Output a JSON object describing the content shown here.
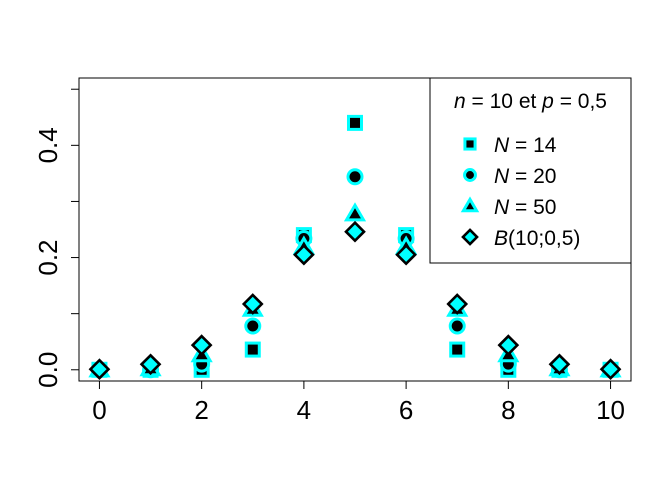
{
  "chart_data": {
    "type": "scatter",
    "title": "",
    "xlabel": "",
    "ylabel": "",
    "xlim": [
      -0.4,
      10.4
    ],
    "ylim": [
      -0.02,
      0.52
    ],
    "x_ticks": [
      0,
      2,
      4,
      6,
      8,
      10
    ],
    "x_tick_labels": [
      "0",
      "2",
      "4",
      "6",
      "8",
      "10"
    ],
    "y_ticks": [
      0.0,
      0.2,
      0.4
    ],
    "y_tick_labels": [
      "0.0",
      "0.2",
      "0.4"
    ],
    "grid": false,
    "legend": {
      "position": "top-right",
      "title_parts": {
        "n_var": "n",
        "n_eq": " = 10 et ",
        "p_var": "p",
        "p_eq": " = 0,5"
      }
    },
    "x": [
      0,
      1,
      2,
      3,
      4,
      5,
      6,
      7,
      8,
      9,
      10
    ],
    "series": [
      {
        "legend_var": "N",
        "legend_rest": " = 14",
        "marker": "square",
        "fill": "#000000",
        "outline": "#00ffff",
        "values": [
          0,
          0,
          0.0,
          0.036,
          0.24,
          0.44,
          0.24,
          0.036,
          0.0,
          0,
          0
        ]
      },
      {
        "legend_var": "N",
        "legend_rest": " = 20",
        "marker": "circle",
        "fill": "#000000",
        "outline": "#00ffff",
        "values": [
          0,
          0,
          0.01,
          0.078,
          0.234,
          0.344,
          0.234,
          0.078,
          0.01,
          0,
          0
        ]
      },
      {
        "legend_var": "N",
        "legend_rest": " = 50",
        "marker": "triangle",
        "fill": "#000000",
        "outline": "#00ffff",
        "values": [
          0.0,
          0.002,
          0.027,
          0.108,
          0.219,
          0.278,
          0.219,
          0.108,
          0.027,
          0.002,
          0.0
        ]
      },
      {
        "legend_var": "B",
        "legend_rest": "(10;0,5)",
        "marker": "diamond",
        "fill": "#00ffff",
        "outline": "#000000",
        "values": [
          0.001,
          0.0098,
          0.0439,
          0.1172,
          0.2051,
          0.2461,
          0.2051,
          0.1172,
          0.0439,
          0.0098,
          0.001
        ]
      }
    ]
  }
}
